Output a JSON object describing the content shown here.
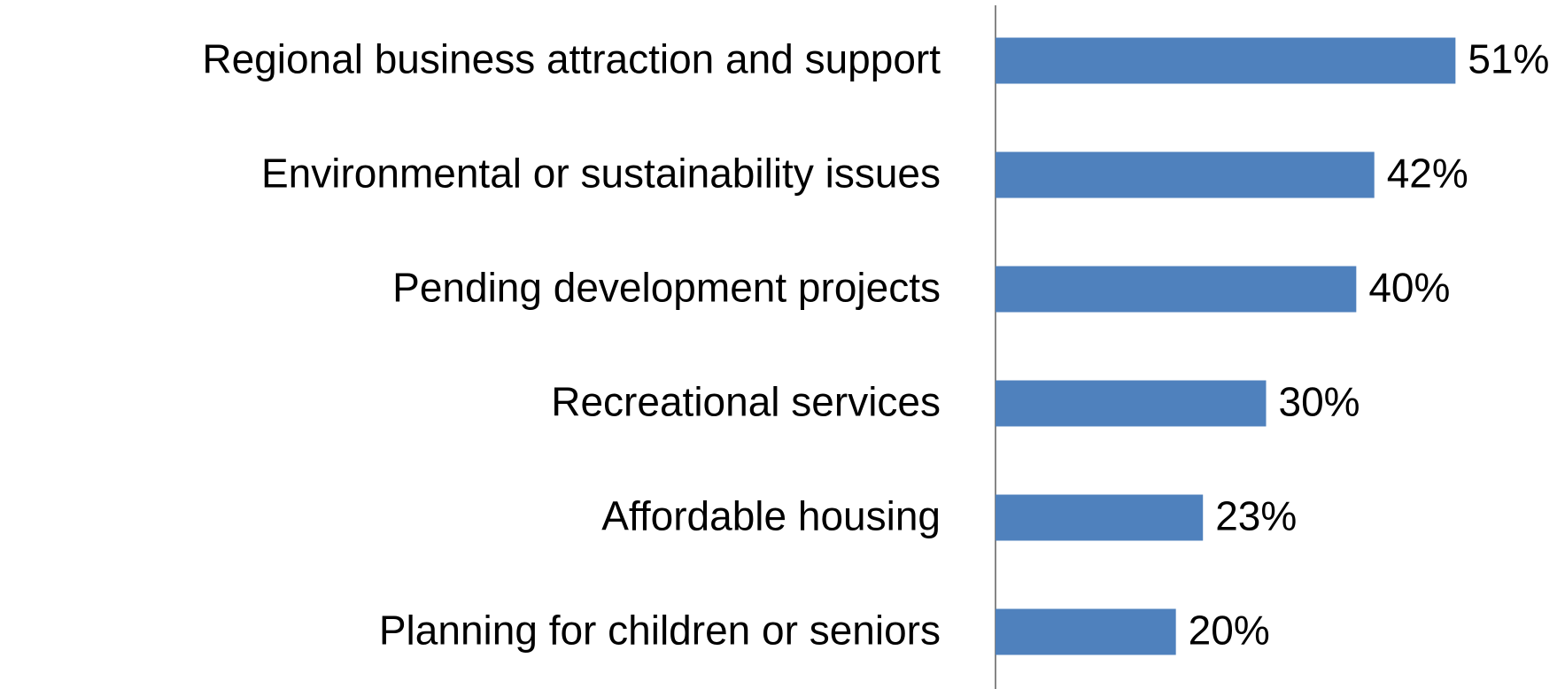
{
  "chart_data": {
    "type": "hbar",
    "categories": [
      "Regional business attraction and support",
      "Environmental or sustainability issues",
      "Pending development projects",
      "Recreational services",
      "Affordable housing",
      "Planning for children or seniors"
    ],
    "values": [
      51,
      42,
      40,
      30,
      23,
      20
    ],
    "value_labels": [
      "51%",
      "42%",
      "40%",
      "30%",
      "23%",
      "20%"
    ],
    "color": "#4f81bd",
    "xlim": [
      0,
      60
    ]
  }
}
